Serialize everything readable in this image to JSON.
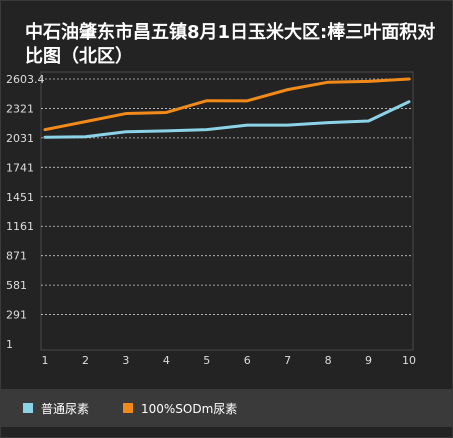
{
  "chart_data": {
    "type": "line",
    "title": "中石油肇东市昌五镇8月1日玉米大区:棒三叶面积对比图（北区）",
    "categories": [
      "1",
      "2",
      "3",
      "4",
      "5",
      "6",
      "7",
      "8",
      "9",
      "10"
    ],
    "yticks": [
      "1",
      "291",
      "581",
      "871",
      "1161",
      "1451",
      "1741",
      "2031",
      "2321",
      "2603.4"
    ],
    "ylim": [
      1,
      2603.4
    ],
    "grid": true,
    "legend_position": "bottom",
    "series": [
      {
        "name": "普通尿素",
        "color": "#8dd3e8",
        "values": [
          2031,
          2036,
          2085,
          2094,
          2106,
          2150,
          2150,
          2175,
          2191,
          2380
        ]
      },
      {
        "name": "100%SODm尿素",
        "color": "#f28a1a",
        "values": [
          2106,
          2185,
          2264,
          2275,
          2390,
          2389,
          2499,
          2572,
          2580,
          2603
        ]
      }
    ]
  }
}
